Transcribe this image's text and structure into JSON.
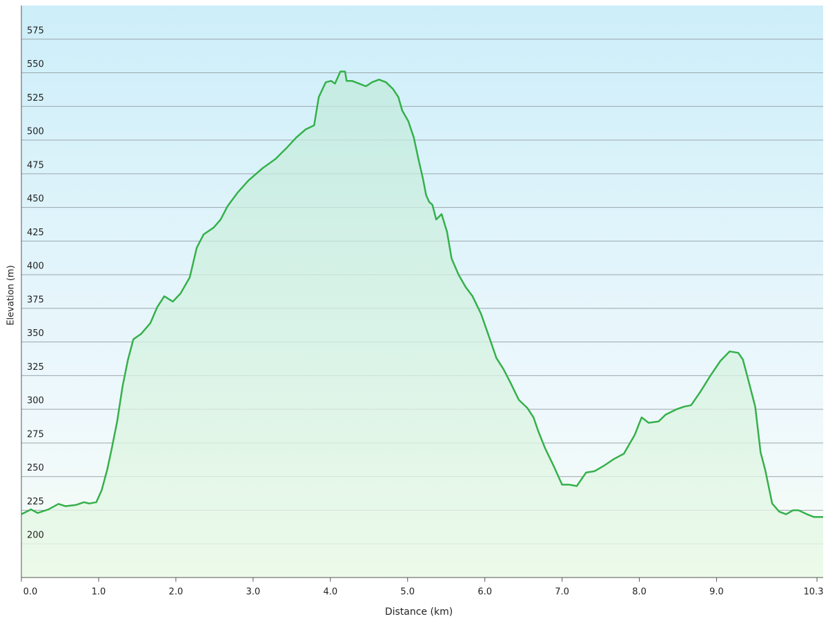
{
  "chart_data": {
    "type": "area",
    "xlabel": "Distance (km)",
    "ylabel": "Elevation (m)",
    "x": [
      0,
      0.125,
      0.21,
      0.35,
      0.48,
      0.57,
      0.71,
      0.81,
      0.88,
      0.97,
      1.04,
      1.11,
      1.17,
      1.24,
      1.31,
      1.38,
      1.45,
      1.55,
      1.67,
      1.76,
      1.85,
      1.96,
      2.06,
      2.18,
      2.27,
      2.36,
      2.49,
      2.58,
      2.67,
      2.8,
      2.94,
      3.12,
      3.29,
      3.43,
      3.56,
      3.68,
      3.79,
      3.85,
      3.94,
      4.01,
      4.06,
      4.13,
      4.19,
      4.21,
      4.28,
      4.37,
      4.46,
      4.54,
      4.63,
      4.72,
      4.81,
      4.88,
      4.93,
      5.01,
      5.08,
      5.14,
      5.2,
      5.24,
      5.28,
      5.32,
      5.37,
      5.44,
      5.51,
      5.57,
      5.66,
      5.75,
      5.84,
      5.95,
      6.06,
      6.15,
      6.24,
      6.33,
      6.44,
      6.55,
      6.63,
      6.69,
      6.78,
      6.89,
      7.0,
      7.09,
      7.19,
      7.31,
      7.42,
      7.54,
      7.67,
      7.8,
      7.94,
      8.03,
      8.12,
      8.25,
      8.34,
      8.48,
      8.58,
      8.67,
      8.79,
      8.92,
      9.05,
      9.17,
      9.28,
      9.34,
      9.41,
      9.5,
      9.57,
      9.63,
      9.72,
      9.81,
      9.9,
      9.99,
      10.06,
      10.17,
      10.26,
      10.38
    ],
    "values": [
      222,
      225.6,
      223,
      225.6,
      229.7,
      228,
      229,
      231,
      230,
      231,
      240,
      255,
      271,
      291,
      317,
      337,
      352,
      356,
      364,
      376,
      384,
      380,
      386,
      398,
      420,
      430,
      435,
      441,
      451,
      461,
      470,
      479,
      486,
      494,
      502,
      508,
      511,
      532,
      543,
      544,
      542,
      551,
      551,
      544,
      544,
      542,
      540,
      543,
      545,
      543,
      538,
      532,
      522,
      514,
      502,
      486,
      471,
      459,
      454,
      452,
      441,
      445,
      432,
      412,
      400,
      391,
      384,
      371,
      353,
      338,
      330,
      320,
      307,
      301,
      294,
      284,
      271,
      258,
      244,
      244,
      243,
      253,
      254,
      258,
      263,
      267,
      281,
      294,
      290,
      291,
      296,
      300,
      302,
      303,
      313,
      325,
      336,
      343,
      342,
      337,
      322,
      302,
      268,
      255,
      230,
      224,
      222,
      225,
      225,
      222,
      220,
      220
    ],
    "color": "#34b04a",
    "xlim": [
      0,
      10.38
    ],
    "xticks": [
      {
        "value": 0,
        "label": "0.0"
      },
      {
        "value": 1,
        "label": "1.0"
      },
      {
        "value": 2,
        "label": "2.0"
      },
      {
        "value": 3,
        "label": "3.0"
      },
      {
        "value": 4,
        "label": "4.0"
      },
      {
        "value": 5,
        "label": "5.0"
      },
      {
        "value": 6,
        "label": "6.0"
      },
      {
        "value": 7,
        "label": "7.0"
      },
      {
        "value": 8,
        "label": "8.0"
      },
      {
        "value": 9,
        "label": "9.0"
      },
      10.3
    ],
    "ylim": [
      175,
      600
    ],
    "yticks": [
      200,
      225,
      250,
      275,
      300,
      325,
      350,
      375,
      400,
      425,
      450,
      475,
      500,
      525,
      550,
      575
    ],
    "grid": true
  }
}
